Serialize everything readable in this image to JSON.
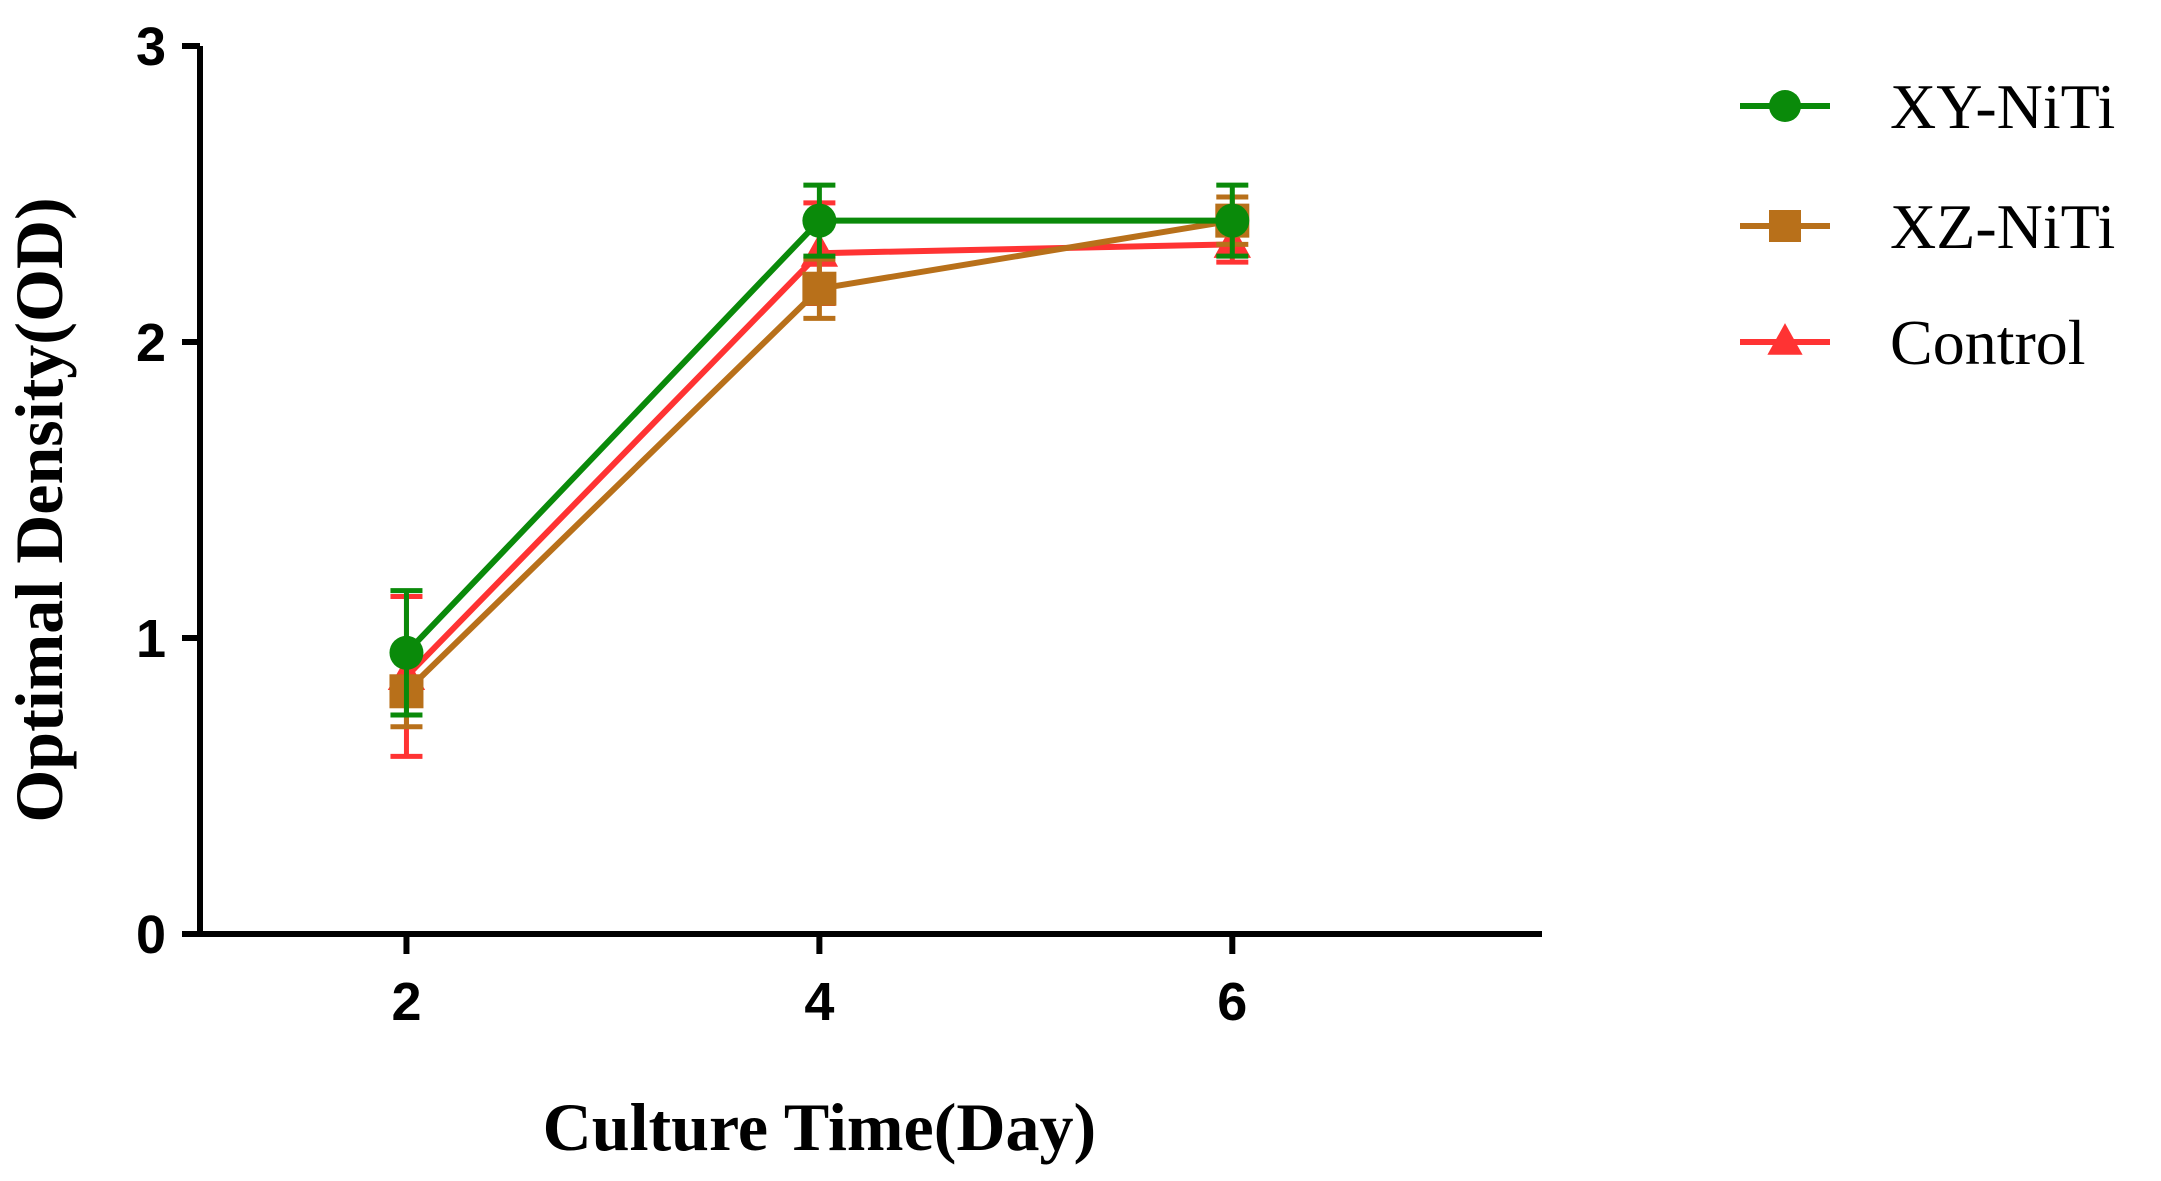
{
  "chart_data": {
    "type": "line",
    "title": "",
    "xlabel": "Culture Time(Day)",
    "ylabel": "Optimal Density(OD)",
    "x": [
      2,
      4,
      6
    ],
    "x_tick_labels": [
      "2",
      "4",
      "6"
    ],
    "xlim": [
      1,
      7.5
    ],
    "y_ticks": [
      0,
      1,
      2,
      3
    ],
    "y_tick_labels": [
      "0",
      "1",
      "2",
      "3"
    ],
    "ylim": [
      0,
      3
    ],
    "grid": false,
    "legend_position": "top-right",
    "series": [
      {
        "name": "Control",
        "color": "#ff3333",
        "marker": "triangle",
        "values": [
          0.87,
          2.3,
          2.33
        ],
        "error": [
          0.27,
          0.17,
          0.06
        ]
      },
      {
        "name": "XZ-NiTi",
        "color": "#b8701a",
        "marker": "square",
        "values": [
          0.82,
          2.18,
          2.41
        ],
        "error": [
          0.12,
          0.1,
          0.08
        ]
      },
      {
        "name": "XY-NiTi",
        "color": "#0a8a0a",
        "marker": "circle",
        "values": [
          0.95,
          2.41,
          2.41
        ],
        "error": [
          0.21,
          0.12,
          0.12
        ]
      }
    ],
    "legend_order": [
      "XY-NiTi",
      "XZ-NiTi",
      "Control"
    ]
  }
}
